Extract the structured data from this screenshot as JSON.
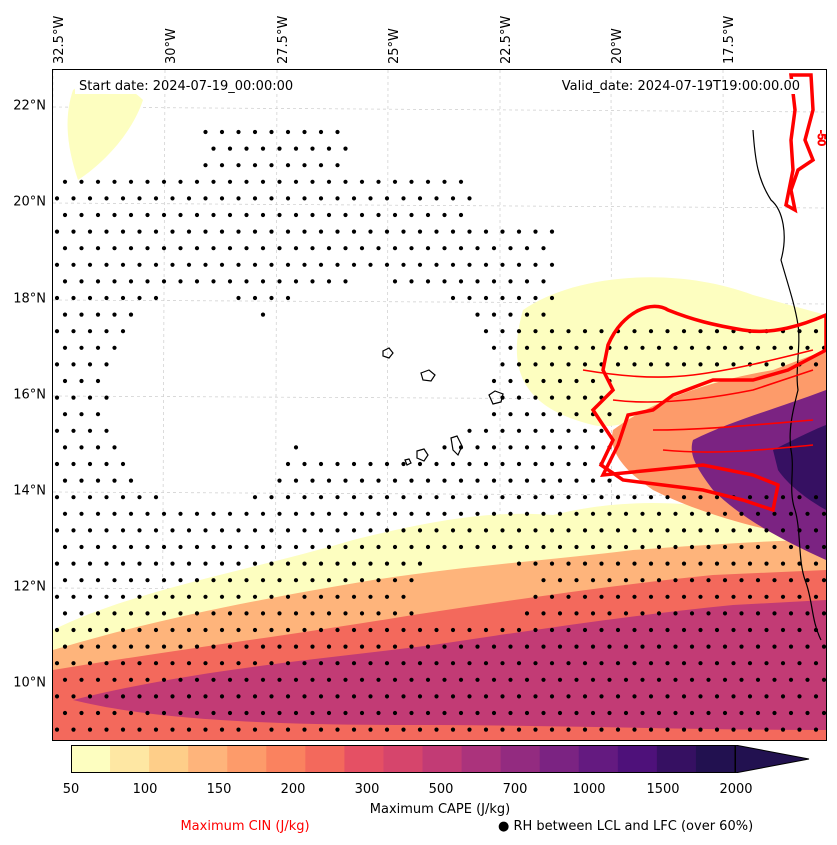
{
  "map": {
    "lon_labels": [
      "32.5°W",
      "30°W",
      "27.5°W",
      "25°W",
      "22.5°W",
      "20°W",
      "17.5°W"
    ],
    "lat_labels": [
      "22°N",
      "20°N",
      "18°N",
      "16°N",
      "14°N",
      "12°N",
      "10°N"
    ],
    "start_date": "Start date: 2024-07-19_00:00:00",
    "valid_date": "Valid_date: 2024-07-19T19:00:00.00"
  },
  "colorbar": {
    "label": "Maximum CAPE (J/kg)",
    "ticks": [
      "50",
      "100",
      "150",
      "200",
      "300",
      "500",
      "700",
      "1000",
      "1500",
      "2000"
    ],
    "colors": [
      "#fdfec0",
      "#fee7a3",
      "#fece89",
      "#feb47b",
      "#fd9b6a",
      "#fa825f",
      "#f3695c",
      "#e55064",
      "#d6456c",
      "#c23b75",
      "#ab337c",
      "#932b80",
      "#7b2382",
      "#641a80",
      "#4e117a",
      "#361062",
      "#221150"
    ]
  },
  "legend": {
    "cin_label": "Maximum CIN (J/kg)",
    "cin_color": "#ff0000",
    "rh_label": "● RH between LCL and LFC (over 60%)"
  },
  "contour_label": "-50"
}
